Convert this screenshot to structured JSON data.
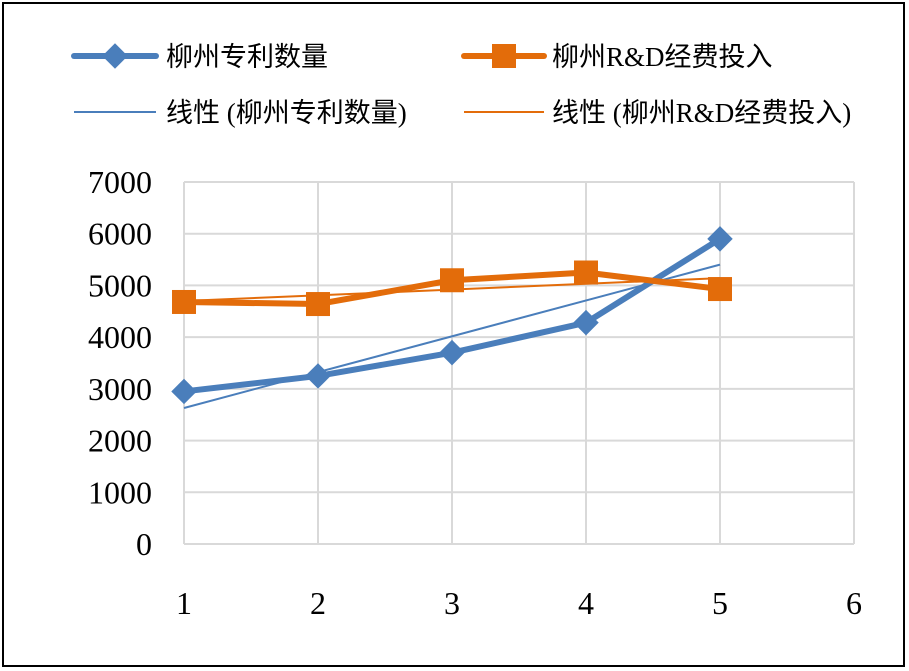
{
  "chart_data": {
    "type": "line",
    "title": "",
    "xlabel": "",
    "ylabel": "",
    "x": [
      1,
      2,
      3,
      4,
      5
    ],
    "xlim": [
      1,
      6
    ],
    "ylim": [
      0,
      7000
    ],
    "xticks": [
      "1",
      "2",
      "3",
      "4",
      "5",
      "6"
    ],
    "yticks": [
      "0",
      "1000",
      "2000",
      "3000",
      "4000",
      "5000",
      "6000",
      "7000"
    ],
    "grid": true,
    "legend_position": "top",
    "series": [
      {
        "name": "柳州专利数量",
        "values": [
          2950,
          3250,
          3700,
          4280,
          5900
        ],
        "color": "#4a7ebb",
        "marker": "diamond"
      },
      {
        "name": "柳州R&D经费投入",
        "values": [
          4680,
          4640,
          5100,
          5250,
          4930
        ],
        "color": "#e36c0a",
        "marker": "square"
      }
    ],
    "trendlines": [
      {
        "name": "线性 (柳州专利数量)",
        "type": "linear",
        "of_series": "柳州专利数量",
        "color": "#4a7ebb"
      },
      {
        "name": "线性 (柳州R&D经费投入)",
        "type": "linear",
        "of_series": "柳州R&D经费投入",
        "color": "#e36c0a"
      }
    ]
  }
}
